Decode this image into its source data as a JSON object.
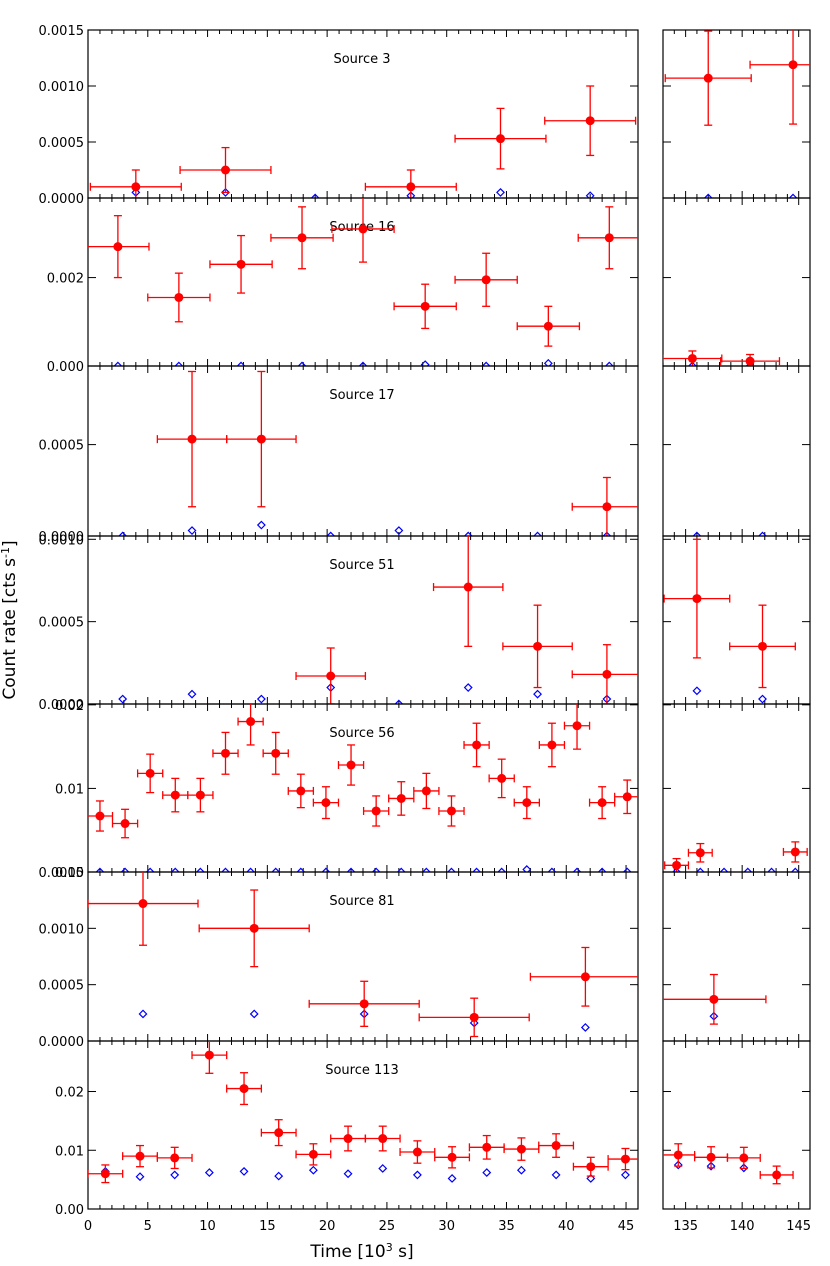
{
  "figure": {
    "ylabel_main": "Count rate [cts s",
    "ylabel_sup": "-1",
    "ylabel_close": "]",
    "xlabel_main": "Time [10",
    "xlabel_sup": "3",
    "xlabel_close": " s]",
    "colors": {
      "source": "#ff0000",
      "background": "#0000ff",
      "axes": "#000000"
    }
  },
  "chart_data": {
    "type": "scatter",
    "description_kind": "light curves with error bars, broken time axis",
    "x_left": {
      "range": [
        0,
        46
      ],
      "ticks": [
        "0",
        "5",
        "10",
        "15",
        "20",
        "25",
        "30",
        "35",
        "40",
        "45"
      ],
      "tick_values": [
        0,
        5,
        10,
        15,
        20,
        25,
        30,
        35,
        40,
        45
      ]
    },
    "x_right": {
      "range": [
        133,
        146
      ],
      "ticks": [
        "135",
        "140",
        "145"
      ],
      "tick_values": [
        135,
        140,
        145
      ]
    },
    "xlabel": "Time [10^3 s]",
    "ylabel": "Count rate [cts s^-1]",
    "series_names": [
      "source",
      "background"
    ],
    "panels": [
      {
        "title": "Source 3",
        "ylim": [
          0,
          0.0015
        ],
        "yticks": [
          "0.0000",
          "0.0005",
          "0.0010",
          "0.0015"
        ],
        "ytick_values": [
          0,
          0.0005,
          0.001,
          0.0015
        ],
        "source": [
          {
            "x": 4,
            "xerr": 3.8,
            "y": 0.0001,
            "yerr": 0.00015
          },
          {
            "x": 11.5,
            "xerr": 3.8,
            "y": 0.00025,
            "yerr": 0.0002
          },
          {
            "x": 27,
            "xerr": 3.8,
            "y": 0.0001,
            "yerr": 0.00015
          },
          {
            "x": 34.5,
            "xerr": 3.8,
            "y": 0.00053,
            "yerr": 0.00027
          },
          {
            "x": 42,
            "xerr": 3.8,
            "y": 0.00069,
            "yerr": 0.00031
          },
          {
            "x": 137,
            "xerr": 3.8,
            "y": 0.00107,
            "yerr": 0.00042
          },
          {
            "x": 144.5,
            "xerr": 3.8,
            "y": 0.00119,
            "yerr": 0.00053
          }
        ],
        "background": [
          {
            "x": 4,
            "y": 5e-05
          },
          {
            "x": 11.5,
            "y": 5e-05
          },
          {
            "x": 19,
            "y": 0.0
          },
          {
            "x": 27,
            "y": 2e-05
          },
          {
            "x": 34.5,
            "y": 5e-05
          },
          {
            "x": 42,
            "y": 2e-05
          },
          {
            "x": 137,
            "y": 0.0
          },
          {
            "x": 144.5,
            "y": 0.0
          }
        ]
      },
      {
        "title": "Source 16",
        "ylim": [
          0,
          0.0038
        ],
        "yticks": [
          "0.000",
          "0.002"
        ],
        "ytick_values": [
          0,
          0.002
        ],
        "source": [
          {
            "x": 2.5,
            "xerr": 2.6,
            "y": 0.0027,
            "yerr": 0.0007
          },
          {
            "x": 7.6,
            "xerr": 2.6,
            "y": 0.00155,
            "yerr": 0.00055
          },
          {
            "x": 12.8,
            "xerr": 2.6,
            "y": 0.0023,
            "yerr": 0.00065
          },
          {
            "x": 17.9,
            "xerr": 2.6,
            "y": 0.0029,
            "yerr": 0.0007
          },
          {
            "x": 23.0,
            "xerr": 2.6,
            "y": 0.0031,
            "yerr": 0.00075
          },
          {
            "x": 28.2,
            "xerr": 2.6,
            "y": 0.00135,
            "yerr": 0.0005
          },
          {
            "x": 33.3,
            "xerr": 2.6,
            "y": 0.00195,
            "yerr": 0.0006
          },
          {
            "x": 38.5,
            "xerr": 2.6,
            "y": 0.0009,
            "yerr": 0.00045
          },
          {
            "x": 43.6,
            "xerr": 2.6,
            "y": 0.0029,
            "yerr": 0.0007
          },
          {
            "x": 135.6,
            "xerr": 2.6,
            "y": 0.00017,
            "yerr": 0.00017
          },
          {
            "x": 140.7,
            "xerr": 2.6,
            "y": 0.00011,
            "yerr": 0.00015
          }
        ],
        "background": [
          {
            "x": 2.5,
            "y": 0.0
          },
          {
            "x": 7.6,
            "y": 0.0
          },
          {
            "x": 12.8,
            "y": 0.0
          },
          {
            "x": 17.9,
            "y": 0.0
          },
          {
            "x": 23.0,
            "y": 0.0
          },
          {
            "x": 28.2,
            "y": 3e-05
          },
          {
            "x": 33.3,
            "y": 0.0
          },
          {
            "x": 38.5,
            "y": 6e-05
          },
          {
            "x": 43.6,
            "y": 0.0
          },
          {
            "x": 135.6,
            "y": 0.0
          },
          {
            "x": 140.7,
            "y": 0.0
          }
        ]
      },
      {
        "title": "Source 17",
        "ylim": [
          0,
          0.00093
        ],
        "yticks": [
          "0.0000",
          "0.0005"
        ],
        "ytick_values": [
          0,
          0.0005
        ],
        "source": [
          {
            "x": 8.7,
            "xerr": 2.9,
            "y": 0.00053,
            "yerr": 0.00037
          },
          {
            "x": 14.5,
            "xerr": 2.9,
            "y": 0.00053,
            "yerr": 0.00037
          },
          {
            "x": 43.4,
            "xerr": 2.9,
            "y": 0.00016,
            "yerr": 0.00016
          }
        ],
        "background": [
          {
            "x": 2.9,
            "y": 0.0
          },
          {
            "x": 8.7,
            "y": 3e-05
          },
          {
            "x": 14.5,
            "y": 6e-05
          },
          {
            "x": 20.3,
            "y": 0.0
          },
          {
            "x": 26.0,
            "y": 3e-05
          },
          {
            "x": 31.8,
            "y": 0.0
          },
          {
            "x": 37.6,
            "y": 0.0
          },
          {
            "x": 43.4,
            "y": 0.0
          },
          {
            "x": 136,
            "y": 0.0
          },
          {
            "x": 141.8,
            "y": 0.0
          }
        ]
      },
      {
        "title": "Source 51",
        "ylim": [
          0,
          0.00102
        ],
        "yticks": [
          "0.0000",
          "0.0005",
          "0.0010"
        ],
        "ytick_values": [
          0,
          0.0005,
          0.001
        ],
        "source": [
          {
            "x": 20.3,
            "xerr": 2.9,
            "y": 0.00017,
            "yerr": 0.00017
          },
          {
            "x": 31.8,
            "xerr": 2.9,
            "y": 0.00071,
            "yerr": 0.00036
          },
          {
            "x": 37.6,
            "xerr": 2.9,
            "y": 0.00035,
            "yerr": 0.00025
          },
          {
            "x": 43.4,
            "xerr": 2.9,
            "y": 0.00018,
            "yerr": 0.00018
          },
          {
            "x": 136,
            "xerr": 2.9,
            "y": 0.00064,
            "yerr": 0.00036
          },
          {
            "x": 141.8,
            "xerr": 2.9,
            "y": 0.00035,
            "yerr": 0.00025
          }
        ],
        "background": [
          {
            "x": 2.9,
            "y": 3e-05
          },
          {
            "x": 8.7,
            "y": 6e-05
          },
          {
            "x": 14.5,
            "y": 3e-05
          },
          {
            "x": 20.3,
            "y": 0.0001
          },
          {
            "x": 26.0,
            "y": 0.0
          },
          {
            "x": 31.8,
            "y": 0.0001
          },
          {
            "x": 37.6,
            "y": 6e-05
          },
          {
            "x": 43.4,
            "y": 3e-05
          },
          {
            "x": 136,
            "y": 8e-05
          },
          {
            "x": 141.8,
            "y": 3e-05
          }
        ]
      },
      {
        "title": "Source 56",
        "ylim": [
          0,
          0.0201
        ],
        "yticks": [
          "0.00",
          "0.01",
          "0.02"
        ],
        "ytick_values": [
          0,
          0.01,
          0.02
        ],
        "source": [
          {
            "x": 1.0,
            "xerr": 1.05,
            "y": 0.0067,
            "yerr": 0.0018
          },
          {
            "x": 3.1,
            "xerr": 1.05,
            "y": 0.0058,
            "yerr": 0.0017
          },
          {
            "x": 5.2,
            "xerr": 1.05,
            "y": 0.0118,
            "yerr": 0.0023
          },
          {
            "x": 7.3,
            "xerr": 1.05,
            "y": 0.0092,
            "yerr": 0.002
          },
          {
            "x": 9.4,
            "xerr": 1.05,
            "y": 0.0092,
            "yerr": 0.002
          },
          {
            "x": 11.5,
            "xerr": 1.05,
            "y": 0.0142,
            "yerr": 0.0025
          },
          {
            "x": 13.6,
            "xerr": 1.05,
            "y": 0.018,
            "yerr": 0.0028
          },
          {
            "x": 15.7,
            "xerr": 1.05,
            "y": 0.0142,
            "yerr": 0.0025
          },
          {
            "x": 17.8,
            "xerr": 1.05,
            "y": 0.0097,
            "yerr": 0.002
          },
          {
            "x": 19.9,
            "xerr": 1.05,
            "y": 0.0083,
            "yerr": 0.0019
          },
          {
            "x": 22.0,
            "xerr": 1.05,
            "y": 0.0128,
            "yerr": 0.0024
          },
          {
            "x": 24.1,
            "xerr": 1.05,
            "y": 0.0073,
            "yerr": 0.0018
          },
          {
            "x": 26.2,
            "xerr": 1.05,
            "y": 0.0088,
            "yerr": 0.002
          },
          {
            "x": 28.3,
            "xerr": 1.05,
            "y": 0.0097,
            "yerr": 0.0021
          },
          {
            "x": 30.4,
            "xerr": 1.05,
            "y": 0.0073,
            "yerr": 0.0018
          },
          {
            "x": 32.5,
            "xerr": 1.05,
            "y": 0.0152,
            "yerr": 0.0026
          },
          {
            "x": 34.6,
            "xerr": 1.05,
            "y": 0.0112,
            "yerr": 0.0023
          },
          {
            "x": 36.7,
            "xerr": 1.05,
            "y": 0.0083,
            "yerr": 0.0019
          },
          {
            "x": 38.8,
            "xerr": 1.05,
            "y": 0.0152,
            "yerr": 0.0026
          },
          {
            "x": 40.9,
            "xerr": 1.05,
            "y": 0.0175,
            "yerr": 0.0028
          },
          {
            "x": 43.0,
            "xerr": 1.05,
            "y": 0.0083,
            "yerr": 0.0019
          },
          {
            "x": 45.1,
            "xerr": 1.05,
            "y": 0.009,
            "yerr": 0.002
          },
          {
            "x": 134.2,
            "xerr": 1.05,
            "y": 0.0008,
            "yerr": 0.0008
          },
          {
            "x": 136.3,
            "xerr": 1.05,
            "y": 0.0023,
            "yerr": 0.0011
          },
          {
            "x": 144.7,
            "xerr": 1.05,
            "y": 0.0024,
            "yerr": 0.0012
          }
        ],
        "background": [
          {
            "x": 1.0,
            "y": 0.0
          },
          {
            "x": 3.1,
            "y": 0.0
          },
          {
            "x": 5.2,
            "y": 0.0
          },
          {
            "x": 7.3,
            "y": 0.0
          },
          {
            "x": 9.4,
            "y": 0.0
          },
          {
            "x": 11.5,
            "y": 0.0
          },
          {
            "x": 13.6,
            "y": 0.0
          },
          {
            "x": 15.7,
            "y": 0.0
          },
          {
            "x": 17.8,
            "y": 0.0
          },
          {
            "x": 19.9,
            "y": 0.0
          },
          {
            "x": 22.0,
            "y": 0.0
          },
          {
            "x": 24.1,
            "y": 0.0
          },
          {
            "x": 26.2,
            "y": 0.0
          },
          {
            "x": 28.3,
            "y": 0.0
          },
          {
            "x": 30.4,
            "y": 0.0
          },
          {
            "x": 32.5,
            "y": 0.0
          },
          {
            "x": 34.6,
            "y": 0.0
          },
          {
            "x": 36.7,
            "y": 0.0003
          },
          {
            "x": 38.8,
            "y": 0.0
          },
          {
            "x": 40.9,
            "y": 0.0
          },
          {
            "x": 43.0,
            "y": 0.0
          },
          {
            "x": 45.1,
            "y": 0.0
          },
          {
            "x": 134.2,
            "y": 0.0
          },
          {
            "x": 136.3,
            "y": 0.0
          },
          {
            "x": 138.4,
            "y": 0.0
          },
          {
            "x": 140.5,
            "y": 0.0
          },
          {
            "x": 142.6,
            "y": 0.0
          },
          {
            "x": 144.7,
            "y": 0.0
          }
        ]
      },
      {
        "title": "Source 81",
        "ylim": [
          0,
          0.0015
        ],
        "yticks": [
          "0.0000",
          "0.0005",
          "0.0010",
          "0.0015"
        ],
        "ytick_values": [
          0,
          0.0005,
          0.001,
          0.0015
        ],
        "source": [
          {
            "x": 4.6,
            "xerr": 4.6,
            "y": 0.00122,
            "yerr": 0.00037
          },
          {
            "x": 13.9,
            "xerr": 4.6,
            "y": 0.001,
            "yerr": 0.00034
          },
          {
            "x": 23.1,
            "xerr": 4.6,
            "y": 0.00033,
            "yerr": 0.0002
          },
          {
            "x": 32.3,
            "xerr": 4.6,
            "y": 0.00021,
            "yerr": 0.00017
          },
          {
            "x": 41.6,
            "xerr": 4.6,
            "y": 0.00057,
            "yerr": 0.00026
          },
          {
            "x": 137.5,
            "xerr": 4.6,
            "y": 0.00037,
            "yerr": 0.00022
          }
        ],
        "background": [
          {
            "x": 4.6,
            "y": 0.00024
          },
          {
            "x": 13.9,
            "y": 0.00024
          },
          {
            "x": 23.1,
            "y": 0.00024
          },
          {
            "x": 32.3,
            "y": 0.00016
          },
          {
            "x": 41.6,
            "y": 0.00012
          },
          {
            "x": 137.5,
            "y": 0.00022
          }
        ]
      },
      {
        "title": "Source 113",
        "ylim": [
          0,
          0.0286
        ],
        "yticks": [
          "0.00",
          "0.01",
          "0.02"
        ],
        "ytick_values": [
          0,
          0.01,
          0.02
        ],
        "source": [
          {
            "x": 1.45,
            "xerr": 1.45,
            "y": 0.006,
            "yerr": 0.0015
          },
          {
            "x": 4.35,
            "xerr": 1.45,
            "y": 0.009,
            "yerr": 0.0018
          },
          {
            "x": 7.25,
            "xerr": 1.45,
            "y": 0.0087,
            "yerr": 0.0018
          },
          {
            "x": 10.15,
            "xerr": 1.45,
            "y": 0.0262,
            "yerr": 0.0031
          },
          {
            "x": 13.05,
            "xerr": 1.45,
            "y": 0.0205,
            "yerr": 0.0027
          },
          {
            "x": 15.95,
            "xerr": 1.45,
            "y": 0.013,
            "yerr": 0.0022
          },
          {
            "x": 18.85,
            "xerr": 1.45,
            "y": 0.0093,
            "yerr": 0.0018
          },
          {
            "x": 21.75,
            "xerr": 1.45,
            "y": 0.012,
            "yerr": 0.0021
          },
          {
            "x": 24.65,
            "xerr": 1.45,
            "y": 0.012,
            "yerr": 0.0021
          },
          {
            "x": 27.55,
            "xerr": 1.45,
            "y": 0.0097,
            "yerr": 0.0019
          },
          {
            "x": 30.45,
            "xerr": 1.45,
            "y": 0.0088,
            "yerr": 0.0018
          },
          {
            "x": 33.35,
            "xerr": 1.45,
            "y": 0.0105,
            "yerr": 0.002
          },
          {
            "x": 36.25,
            "xerr": 1.45,
            "y": 0.0102,
            "yerr": 0.0019
          },
          {
            "x": 39.15,
            "xerr": 1.45,
            "y": 0.0108,
            "yerr": 0.002
          },
          {
            "x": 42.05,
            "xerr": 1.45,
            "y": 0.0072,
            "yerr": 0.0016
          },
          {
            "x": 44.95,
            "xerr": 1.45,
            "y": 0.0085,
            "yerr": 0.0018
          },
          {
            "x": 134.35,
            "xerr": 1.45,
            "y": 0.0092,
            "yerr": 0.0019
          },
          {
            "x": 137.25,
            "xerr": 1.45,
            "y": 0.0088,
            "yerr": 0.0018
          },
          {
            "x": 140.15,
            "xerr": 1.45,
            "y": 0.0087,
            "yerr": 0.0018
          },
          {
            "x": 143.05,
            "xerr": 1.45,
            "y": 0.0058,
            "yerr": 0.0015
          }
        ],
        "background": [
          {
            "x": 1.45,
            "y": 0.0064
          },
          {
            "x": 4.35,
            "y": 0.0055
          },
          {
            "x": 7.25,
            "y": 0.0058
          },
          {
            "x": 10.15,
            "y": 0.0062
          },
          {
            "x": 13.05,
            "y": 0.0064
          },
          {
            "x": 15.95,
            "y": 0.0056
          },
          {
            "x": 18.85,
            "y": 0.0066
          },
          {
            "x": 21.75,
            "y": 0.006
          },
          {
            "x": 24.65,
            "y": 0.0069
          },
          {
            "x": 27.55,
            "y": 0.0058
          },
          {
            "x": 30.45,
            "y": 0.0052
          },
          {
            "x": 33.35,
            "y": 0.0062
          },
          {
            "x": 36.25,
            "y": 0.0066
          },
          {
            "x": 39.15,
            "y": 0.0058
          },
          {
            "x": 42.05,
            "y": 0.0052
          },
          {
            "x": 44.95,
            "y": 0.0058
          },
          {
            "x": 134.35,
            "y": 0.0075
          },
          {
            "x": 137.25,
            "y": 0.0073
          },
          {
            "x": 140.15,
            "y": 0.007
          },
          {
            "x": 143.05,
            "y": 0.0058
          }
        ]
      }
    ]
  }
}
